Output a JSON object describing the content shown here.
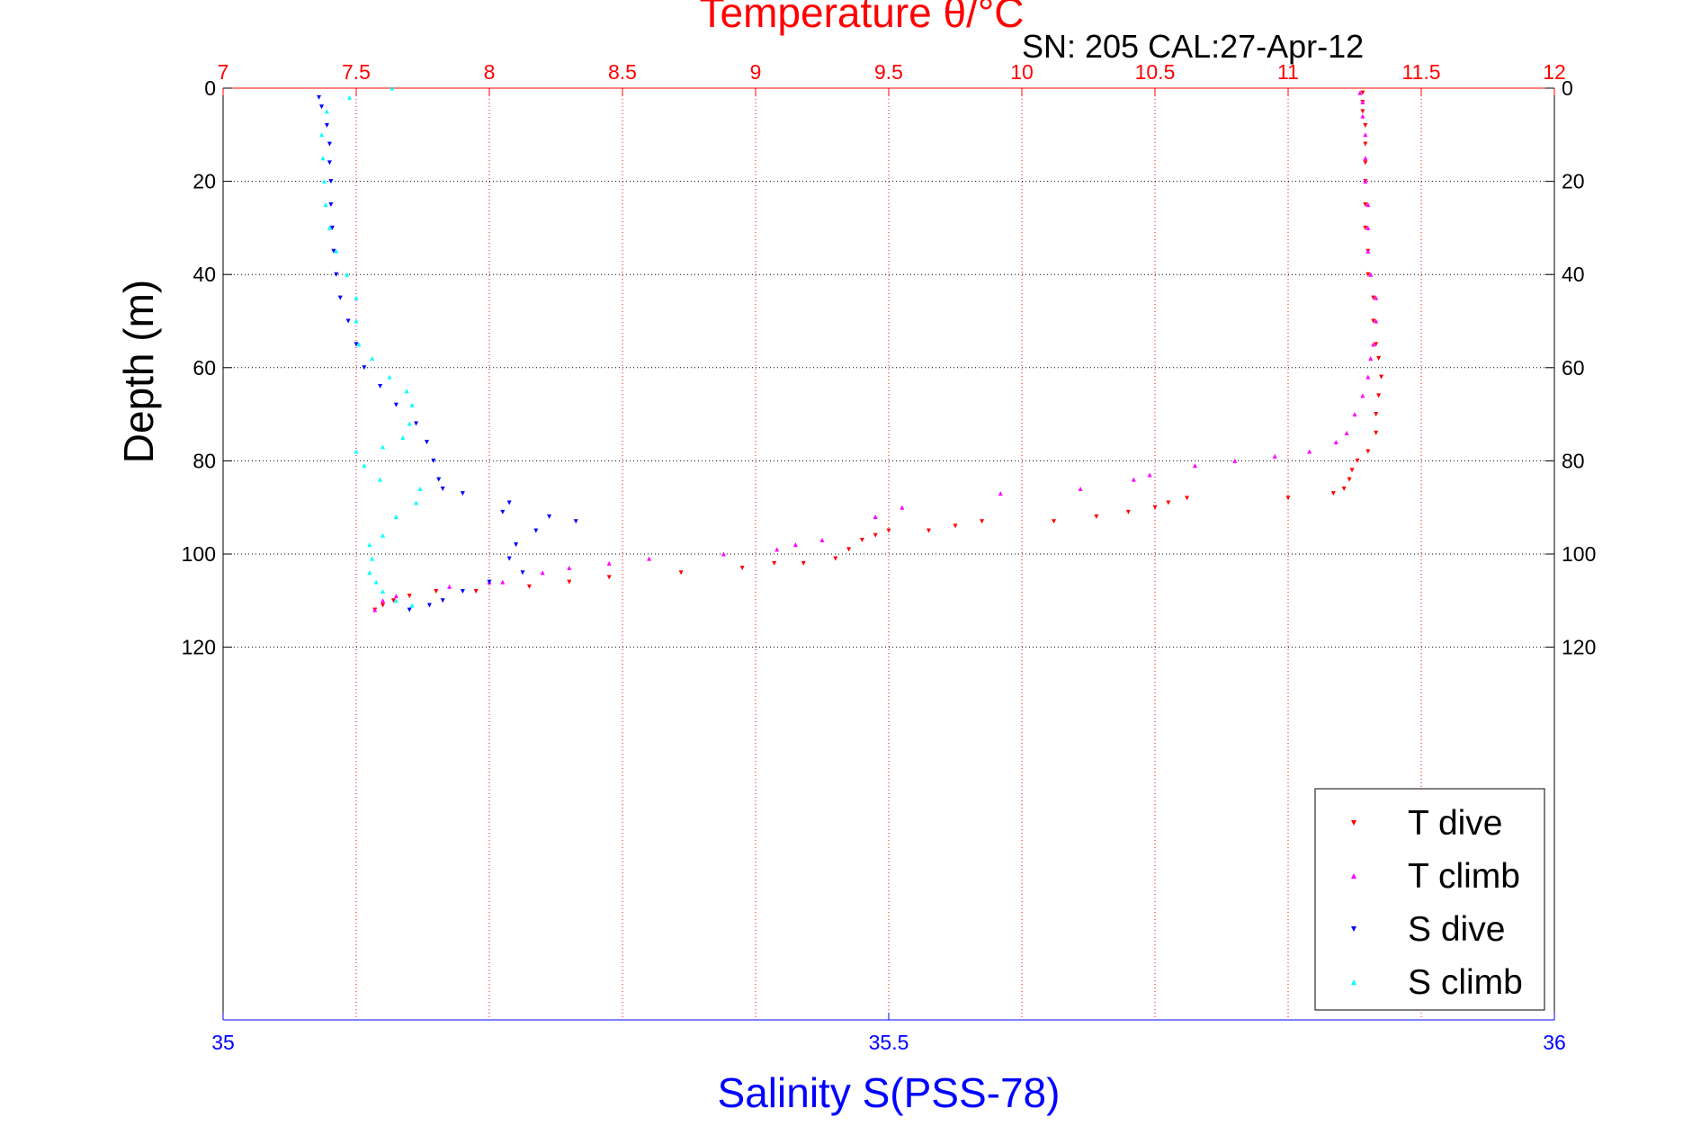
{
  "chart_data": {
    "type": "scatter",
    "title": "Temperature θ/°C",
    "subtitle": "SN: 205  CAL:27-Apr-12",
    "xlabel_top": "Temperature θ/°C",
    "xlabel_bottom": "Salinity S(PSS-78)",
    "ylabel": "Depth (m)",
    "x_top": {
      "range": [
        7,
        12
      ],
      "ticks": [
        "7",
        "7.5",
        "8",
        "8.5",
        "9",
        "9.5",
        "10",
        "10.5",
        "11",
        "11.5",
        "12"
      ]
    },
    "x_bottom": {
      "range": [
        35,
        36
      ],
      "ticks": [
        "35",
        "35.5",
        "36"
      ]
    },
    "y": {
      "range": [
        0,
        200
      ],
      "reversed": true,
      "ticks": [
        "0",
        "20",
        "40",
        "60",
        "80",
        "100",
        "120"
      ]
    },
    "grid": true,
    "legend_position": "bottom-right",
    "colors": {
      "t_dive": "#ff0000",
      "t_climb": "#ff00ff",
      "s_dive": "#0000ff",
      "s_climb": "#00ffff",
      "temp_axis": "#ff0000",
      "sal_axis": "#0000ff"
    },
    "series": [
      {
        "name": "T dive",
        "axis": "temperature",
        "marker": "triangle-down",
        "points": [
          [
            11.28,
            1
          ],
          [
            11.28,
            3
          ],
          [
            11.28,
            5
          ],
          [
            11.29,
            8
          ],
          [
            11.29,
            12
          ],
          [
            11.29,
            16
          ],
          [
            11.29,
            20
          ],
          [
            11.29,
            25
          ],
          [
            11.29,
            30
          ],
          [
            11.3,
            35
          ],
          [
            11.3,
            40
          ],
          [
            11.32,
            45
          ],
          [
            11.32,
            50
          ],
          [
            11.33,
            55
          ],
          [
            11.34,
            58
          ],
          [
            11.35,
            62
          ],
          [
            11.34,
            66
          ],
          [
            11.33,
            70
          ],
          [
            11.33,
            74
          ],
          [
            11.3,
            78
          ],
          [
            11.26,
            80
          ],
          [
            11.24,
            82
          ],
          [
            11.23,
            84
          ],
          [
            11.21,
            86
          ],
          [
            11.17,
            87
          ],
          [
            11.0,
            88
          ],
          [
            10.62,
            88
          ],
          [
            10.55,
            89
          ],
          [
            10.5,
            90
          ],
          [
            10.4,
            91
          ],
          [
            10.28,
            92
          ],
          [
            10.12,
            93
          ],
          [
            9.85,
            93
          ],
          [
            9.75,
            94
          ],
          [
            9.65,
            95
          ],
          [
            9.5,
            95
          ],
          [
            9.45,
            96
          ],
          [
            9.4,
            97
          ],
          [
            9.35,
            99
          ],
          [
            9.3,
            101
          ],
          [
            9.18,
            102
          ],
          [
            9.07,
            102
          ],
          [
            8.95,
            103
          ],
          [
            8.72,
            104
          ],
          [
            8.45,
            105
          ],
          [
            8.3,
            106
          ],
          [
            8.15,
            107
          ],
          [
            7.95,
            108
          ],
          [
            7.8,
            108
          ],
          [
            7.7,
            109
          ],
          [
            7.64,
            110
          ],
          [
            7.6,
            111
          ],
          [
            7.57,
            112
          ]
        ]
      },
      {
        "name": "T climb",
        "axis": "temperature",
        "marker": "triangle-up",
        "points": [
          [
            7.57,
            112
          ],
          [
            7.6,
            110
          ],
          [
            7.65,
            109
          ],
          [
            7.85,
            107
          ],
          [
            8.0,
            106
          ],
          [
            8.05,
            106
          ],
          [
            8.2,
            104
          ],
          [
            8.3,
            103
          ],
          [
            8.45,
            102
          ],
          [
            8.6,
            101
          ],
          [
            8.88,
            100
          ],
          [
            9.08,
            99
          ],
          [
            9.15,
            98
          ],
          [
            9.25,
            97
          ],
          [
            9.45,
            92
          ],
          [
            9.55,
            90
          ],
          [
            9.92,
            87
          ],
          [
            10.22,
            86
          ],
          [
            10.42,
            84
          ],
          [
            10.48,
            83
          ],
          [
            10.65,
            81
          ],
          [
            10.8,
            80
          ],
          [
            10.95,
            79
          ],
          [
            11.08,
            78
          ],
          [
            11.18,
            76
          ],
          [
            11.22,
            74
          ],
          [
            11.25,
            70
          ],
          [
            11.28,
            66
          ],
          [
            11.3,
            62
          ],
          [
            11.31,
            58
          ],
          [
            11.32,
            55
          ],
          [
            11.33,
            50
          ],
          [
            11.33,
            45
          ],
          [
            11.31,
            40
          ],
          [
            11.3,
            35
          ],
          [
            11.3,
            30
          ],
          [
            11.3,
            25
          ],
          [
            11.29,
            20
          ],
          [
            11.29,
            15
          ],
          [
            11.29,
            10
          ],
          [
            11.28,
            6
          ],
          [
            11.28,
            3
          ],
          [
            11.27,
            1
          ]
        ]
      },
      {
        "name": "S dive",
        "axis": "salinity",
        "marker": "triangle-down",
        "points": [
          [
            35.072,
            2
          ],
          [
            35.074,
            4
          ],
          [
            35.078,
            8
          ],
          [
            35.08,
            12
          ],
          [
            35.08,
            16
          ],
          [
            35.081,
            20
          ],
          [
            35.081,
            25
          ],
          [
            35.082,
            30
          ],
          [
            35.083,
            35
          ],
          [
            35.085,
            40
          ],
          [
            35.088,
            45
          ],
          [
            35.094,
            50
          ],
          [
            35.1,
            55
          ],
          [
            35.106,
            60
          ],
          [
            35.118,
            64
          ],
          [
            35.13,
            68
          ],
          [
            35.145,
            72
          ],
          [
            35.153,
            76
          ],
          [
            35.158,
            80
          ],
          [
            35.162,
            84
          ],
          [
            35.165,
            86
          ],
          [
            35.18,
            87
          ],
          [
            35.215,
            89
          ],
          [
            35.21,
            91
          ],
          [
            35.245,
            92
          ],
          [
            35.265,
            93
          ],
          [
            35.235,
            95
          ],
          [
            35.22,
            98
          ],
          [
            35.215,
            101
          ],
          [
            35.225,
            104
          ],
          [
            35.2,
            106
          ],
          [
            35.18,
            108
          ],
          [
            35.165,
            110
          ],
          [
            35.155,
            111
          ],
          [
            35.14,
            112
          ]
        ]
      },
      {
        "name": "S climb",
        "axis": "salinity",
        "marker": "triangle-up",
        "points": [
          [
            35.127,
            0
          ],
          [
            35.095,
            2
          ],
          [
            35.078,
            5
          ],
          [
            35.074,
            10
          ],
          [
            35.075,
            15
          ],
          [
            35.076,
            20
          ],
          [
            35.077,
            25
          ],
          [
            35.08,
            30
          ],
          [
            35.085,
            35
          ],
          [
            35.093,
            40
          ],
          [
            35.1,
            45
          ],
          [
            35.1,
            50
          ],
          [
            35.102,
            55
          ],
          [
            35.112,
            58
          ],
          [
            35.125,
            62
          ],
          [
            35.138,
            65
          ],
          [
            35.142,
            68
          ],
          [
            35.14,
            72
          ],
          [
            35.135,
            75
          ],
          [
            35.12,
            77
          ],
          [
            35.1,
            78
          ],
          [
            35.106,
            81
          ],
          [
            35.118,
            84
          ],
          [
            35.148,
            86
          ],
          [
            35.145,
            89
          ],
          [
            35.13,
            92
          ],
          [
            35.12,
            96
          ],
          [
            35.11,
            98
          ],
          [
            35.112,
            101
          ],
          [
            35.11,
            104
          ],
          [
            35.115,
            106
          ],
          [
            35.12,
            108
          ],
          [
            35.13,
            110
          ],
          [
            35.142,
            111
          ]
        ]
      }
    ]
  }
}
